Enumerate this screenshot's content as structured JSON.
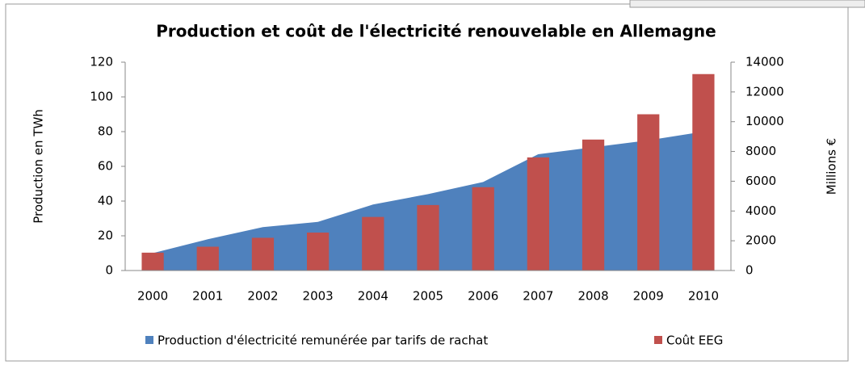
{
  "chart_data": {
    "type": "combo",
    "title": "Production et coût de l'électricité renouvelable en Allemagne",
    "ylabel": "Production en TWh",
    "y2label": "Millions €",
    "categories": [
      "2000",
      "2001",
      "2002",
      "2003",
      "2004",
      "2005",
      "2006",
      "2007",
      "2008",
      "2009",
      "2010"
    ],
    "series": [
      {
        "name": "Production d'électricité remunérée par tarifs de rachat",
        "type": "area",
        "color": "#4f81bd",
        "values": [
          10,
          18,
          25,
          28,
          38,
          44,
          51,
          67,
          71,
          75,
          80
        ]
      },
      {
        "name": "Coût EEG",
        "type": "bar",
        "axis": "y2",
        "color": "#c0504d",
        "values": [
          1200,
          1600,
          2200,
          2550,
          3600,
          4400,
          5600,
          7600,
          8800,
          10500,
          13200
        ]
      }
    ],
    "ylim": [
      0,
      120
    ],
    "yticks": [
      0,
      20,
      40,
      60,
      80,
      100,
      120
    ],
    "y2lim": [
      0,
      14000
    ],
    "y2ticks": [
      0,
      2000,
      4000,
      6000,
      8000,
      10000,
      12000,
      14000
    ],
    "legend": "bottom"
  }
}
